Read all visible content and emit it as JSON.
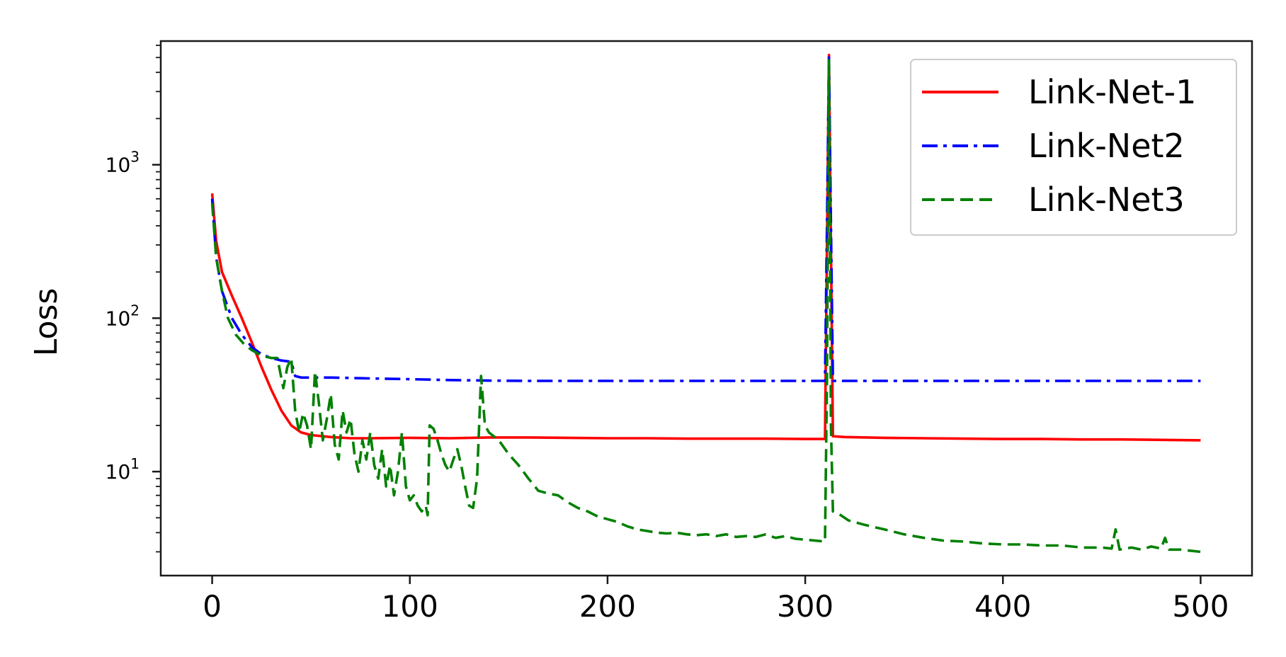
{
  "chart_data": {
    "type": "line",
    "title": "",
    "xlabel": "",
    "ylabel": "Loss",
    "xscale": "linear",
    "yscale": "log",
    "xlim": [
      -26,
      526
    ],
    "ylim": [
      2.1,
      6400
    ],
    "xticks": [
      0,
      100,
      200,
      300,
      400,
      500
    ],
    "xtick_labels": [
      "0",
      "100",
      "200",
      "300",
      "400",
      "500"
    ],
    "yticks": [
      {
        "value": 10,
        "base": "10",
        "exp": "1"
      },
      {
        "value": 100,
        "base": "10",
        "exp": "2"
      },
      {
        "value": 1000,
        "base": "10",
        "exp": "3"
      }
    ],
    "grid": false,
    "legend_position": "top-right",
    "series": [
      {
        "name": "Link-Net-1",
        "color": "#ff0000",
        "linestyle": "solid",
        "points": [
          [
            0,
            650
          ],
          [
            2,
            320
          ],
          [
            5,
            200
          ],
          [
            10,
            140
          ],
          [
            15,
            100
          ],
          [
            20,
            70
          ],
          [
            25,
            48
          ],
          [
            30,
            34
          ],
          [
            35,
            25
          ],
          [
            40,
            20
          ],
          [
            45,
            18
          ],
          [
            50,
            17.3
          ],
          [
            60,
            16.8
          ],
          [
            70,
            16.5
          ],
          [
            80,
            16.5
          ],
          [
            100,
            16.6
          ],
          [
            120,
            16.5
          ],
          [
            140,
            16.7
          ],
          [
            160,
            16.7
          ],
          [
            180,
            16.6
          ],
          [
            200,
            16.5
          ],
          [
            220,
            16.5
          ],
          [
            240,
            16.4
          ],
          [
            260,
            16.4
          ],
          [
            280,
            16.4
          ],
          [
            300,
            16.3
          ],
          [
            310,
            16.3
          ],
          [
            311,
            300
          ],
          [
            312,
            5200
          ],
          [
            313,
            300
          ],
          [
            314,
            17
          ],
          [
            320,
            16.8
          ],
          [
            340,
            16.6
          ],
          [
            360,
            16.5
          ],
          [
            380,
            16.4
          ],
          [
            400,
            16.3
          ],
          [
            420,
            16.3
          ],
          [
            440,
            16.2
          ],
          [
            460,
            16.2
          ],
          [
            480,
            16.1
          ],
          [
            500,
            16.0
          ]
        ]
      },
      {
        "name": "Link-Net2",
        "color": "#0000ff",
        "linestyle": "dashdot",
        "points": [
          [
            0,
            600
          ],
          [
            2,
            250
          ],
          [
            5,
            150
          ],
          [
            10,
            100
          ],
          [
            15,
            78
          ],
          [
            20,
            65
          ],
          [
            25,
            58
          ],
          [
            30,
            55
          ],
          [
            35,
            53
          ],
          [
            40,
            52
          ],
          [
            42,
            42
          ],
          [
            45,
            41
          ],
          [
            60,
            41
          ],
          [
            80,
            40.5
          ],
          [
            100,
            40
          ],
          [
            120,
            39.5
          ],
          [
            140,
            39.2
          ],
          [
            160,
            39
          ],
          [
            180,
            39
          ],
          [
            200,
            39
          ],
          [
            220,
            39
          ],
          [
            240,
            39
          ],
          [
            260,
            39
          ],
          [
            280,
            39
          ],
          [
            300,
            39
          ],
          [
            310,
            39
          ],
          [
            311,
            400
          ],
          [
            312,
            5000
          ],
          [
            313,
            400
          ],
          [
            314,
            39
          ],
          [
            320,
            39
          ],
          [
            340,
            39
          ],
          [
            360,
            39
          ],
          [
            380,
            39
          ],
          [
            400,
            39
          ],
          [
            420,
            39
          ],
          [
            440,
            39
          ],
          [
            460,
            39
          ],
          [
            480,
            39
          ],
          [
            500,
            39
          ]
        ]
      },
      {
        "name": "Link-Net3",
        "color": "#008000",
        "linestyle": "dashed",
        "points": [
          [
            0,
            560
          ],
          [
            2,
            250
          ],
          [
            5,
            150
          ],
          [
            8,
            100
          ],
          [
            12,
            78
          ],
          [
            16,
            68
          ],
          [
            20,
            62
          ],
          [
            25,
            57
          ],
          [
            30,
            55
          ],
          [
            33,
            55
          ],
          [
            36,
            35
          ],
          [
            38,
            48
          ],
          [
            40,
            55
          ],
          [
            42,
            25
          ],
          [
            44,
            18
          ],
          [
            46,
            24
          ],
          [
            48,
            20
          ],
          [
            50,
            14
          ],
          [
            52,
            45
          ],
          [
            54,
            28
          ],
          [
            56,
            16
          ],
          [
            58,
            22
          ],
          [
            60,
            32
          ],
          [
            62,
            15
          ],
          [
            64,
            12
          ],
          [
            66,
            25
          ],
          [
            68,
            18
          ],
          [
            70,
            22
          ],
          [
            72,
            13
          ],
          [
            74,
            10
          ],
          [
            76,
            16
          ],
          [
            78,
            12
          ],
          [
            80,
            18
          ],
          [
            82,
            11
          ],
          [
            84,
            9
          ],
          [
            86,
            14
          ],
          [
            88,
            8
          ],
          [
            90,
            11
          ],
          [
            92,
            7
          ],
          [
            94,
            10
          ],
          [
            96,
            18
          ],
          [
            98,
            8
          ],
          [
            100,
            6.5
          ],
          [
            102,
            7
          ],
          [
            104,
            6
          ],
          [
            106,
            5.5
          ],
          [
            108,
            6
          ],
          [
            109,
            5.2
          ],
          [
            110,
            20
          ],
          [
            112,
            19
          ],
          [
            114,
            16
          ],
          [
            116,
            13
          ],
          [
            118,
            11
          ],
          [
            120,
            10
          ],
          [
            122,
            12
          ],
          [
            124,
            14
          ],
          [
            126,
            11
          ],
          [
            128,
            8
          ],
          [
            130,
            6
          ],
          [
            132,
            5.8
          ],
          [
            134,
            9
          ],
          [
            136,
            42
          ],
          [
            138,
            20
          ],
          [
            140,
            18
          ],
          [
            145,
            16
          ],
          [
            150,
            13
          ],
          [
            155,
            11
          ],
          [
            160,
            9
          ],
          [
            165,
            7.5
          ],
          [
            170,
            7.2
          ],
          [
            175,
            7
          ],
          [
            180,
            6.3
          ],
          [
            185,
            5.8
          ],
          [
            190,
            5.5
          ],
          [
            195,
            5.1
          ],
          [
            200,
            4.9
          ],
          [
            205,
            4.7
          ],
          [
            210,
            4.4
          ],
          [
            215,
            4.2
          ],
          [
            220,
            4.1
          ],
          [
            225,
            4.0
          ],
          [
            230,
            3.95
          ],
          [
            235,
            4.0
          ],
          [
            240,
            3.9
          ],
          [
            245,
            3.85
          ],
          [
            250,
            3.9
          ],
          [
            255,
            3.8
          ],
          [
            260,
            3.9
          ],
          [
            265,
            3.75
          ],
          [
            270,
            3.8
          ],
          [
            275,
            3.75
          ],
          [
            280,
            3.9
          ],
          [
            285,
            3.7
          ],
          [
            290,
            3.8
          ],
          [
            295,
            3.65
          ],
          [
            300,
            3.6
          ],
          [
            305,
            3.55
          ],
          [
            310,
            3.5
          ],
          [
            311,
            40
          ],
          [
            312,
            4800
          ],
          [
            313,
            20
          ],
          [
            314,
            5.5
          ],
          [
            318,
            5.2
          ],
          [
            322,
            4.8
          ],
          [
            330,
            4.5
          ],
          [
            340,
            4.2
          ],
          [
            350,
            3.9
          ],
          [
            360,
            3.7
          ],
          [
            370,
            3.55
          ],
          [
            380,
            3.5
          ],
          [
            390,
            3.4
          ],
          [
            400,
            3.35
          ],
          [
            410,
            3.35
          ],
          [
            420,
            3.3
          ],
          [
            430,
            3.3
          ],
          [
            440,
            3.2
          ],
          [
            450,
            3.2
          ],
          [
            455,
            3.15
          ],
          [
            457,
            4.2
          ],
          [
            459,
            3.1
          ],
          [
            465,
            3.2
          ],
          [
            470,
            3.1
          ],
          [
            475,
            3.25
          ],
          [
            480,
            3.15
          ],
          [
            482,
            3.7
          ],
          [
            484,
            3.1
          ],
          [
            490,
            3.1
          ],
          [
            495,
            3.05
          ],
          [
            500,
            3.0
          ]
        ]
      }
    ]
  }
}
